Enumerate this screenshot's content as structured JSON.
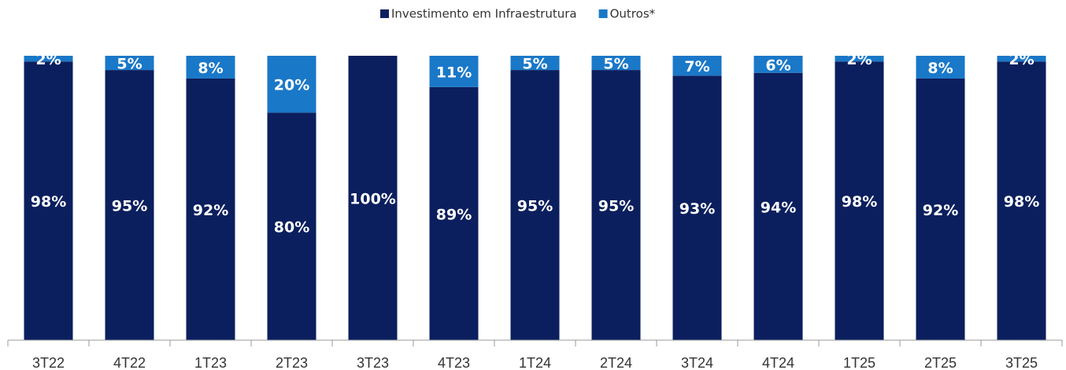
{
  "chart_data": {
    "type": "bar",
    "stacked": true,
    "categories": [
      "3T22",
      "4T22",
      "1T23",
      "2T23",
      "3T23",
      "4T23",
      "1T24",
      "2T24",
      "3T24",
      "4T24",
      "1T25",
      "2T25",
      "3T25"
    ],
    "series": [
      {
        "name": "Investimento em Infraestrutura",
        "color": "#0b1f5e",
        "values": [
          98,
          95,
          92,
          80,
          100,
          89,
          95,
          95,
          93,
          94,
          98,
          92,
          98
        ],
        "value_labels": [
          "98%",
          "95%",
          "92%",
          "80%",
          "100%",
          "89%",
          "95%",
          "95%",
          "93%",
          "94%",
          "98%",
          "92%",
          "98%"
        ]
      },
      {
        "name": "Outros*",
        "color": "#1a78c8",
        "values": [
          2,
          5,
          8,
          20,
          0,
          11,
          5,
          5,
          7,
          6,
          2,
          8,
          2
        ],
        "value_labels": [
          "2%",
          "5%",
          "8%",
          "20%",
          null,
          "11%",
          "5%",
          "5%",
          "7%",
          "6%",
          "2%",
          "8%",
          "2%"
        ]
      }
    ],
    "ylim": [
      0,
      100
    ],
    "legend": "top"
  }
}
